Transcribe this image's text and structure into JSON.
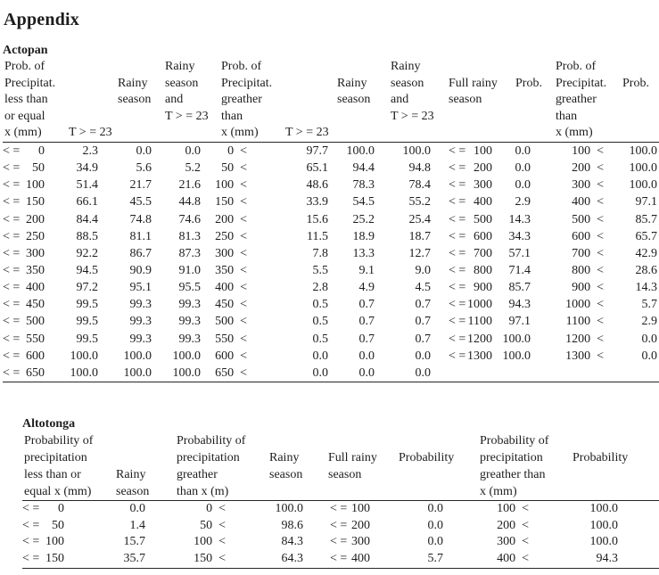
{
  "page": {
    "title": "Appendix"
  },
  "tables": [
    {
      "name": "Actopan",
      "operators": {
        "less_equal": "< =",
        "greater": "<"
      },
      "headers": [
        [
          "Prob. of",
          "Precipitat.",
          "less than",
          "or equal",
          "x (mm)"
        ],
        [
          "T > = 23"
        ],
        [
          "Rainy",
          "season"
        ],
        [
          "Rainy",
          "season",
          "and",
          "T > = 23"
        ],
        [
          "Prob. of",
          "Precipitat.",
          "greather",
          "than",
          "x (mm)"
        ],
        [
          "T > = 23"
        ],
        [
          "Rainy",
          "season"
        ],
        [
          "Rainy",
          "season",
          "and",
          "T > = 23"
        ],
        [
          "Full rainy",
          "season"
        ],
        [
          "Prob."
        ],
        [
          "Prob. of",
          "Precipitat.",
          "greather",
          "than",
          "x (mm)"
        ],
        [
          "Prob."
        ]
      ],
      "rows": [
        [
          "0",
          "2.3",
          "0.0",
          "0.0",
          "0",
          "97.7",
          "100.0",
          "100.0",
          "100",
          "0.0",
          "100",
          "100.0"
        ],
        [
          "50",
          "34.9",
          "5.6",
          "5.2",
          "50",
          "65.1",
          "94.4",
          "94.8",
          "200",
          "0.0",
          "200",
          "100.0"
        ],
        [
          "100",
          "51.4",
          "21.7",
          "21.6",
          "100",
          "48.6",
          "78.3",
          "78.4",
          "300",
          "0.0",
          "300",
          "100.0"
        ],
        [
          "150",
          "66.1",
          "45.5",
          "44.8",
          "150",
          "33.9",
          "54.5",
          "55.2",
          "400",
          "2.9",
          "400",
          "97.1"
        ],
        [
          "200",
          "84.4",
          "74.8",
          "74.6",
          "200",
          "15.6",
          "25.2",
          "25.4",
          "500",
          "14.3",
          "500",
          "85.7"
        ],
        [
          "250",
          "88.5",
          "81.1",
          "81.3",
          "250",
          "11.5",
          "18.9",
          "18.7",
          "600",
          "34.3",
          "600",
          "65.7"
        ],
        [
          "300",
          "92.2",
          "86.7",
          "87.3",
          "300",
          "7.8",
          "13.3",
          "12.7",
          "700",
          "57.1",
          "700",
          "42.9"
        ],
        [
          "350",
          "94.5",
          "90.9",
          "91.0",
          "350",
          "5.5",
          "9.1",
          "9.0",
          "800",
          "71.4",
          "800",
          "28.6"
        ],
        [
          "400",
          "97.2",
          "95.1",
          "95.5",
          "400",
          "2.8",
          "4.9",
          "4.5",
          "900",
          "85.7",
          "900",
          "14.3"
        ],
        [
          "450",
          "99.5",
          "99.3",
          "99.3",
          "450",
          "0.5",
          "0.7",
          "0.7",
          "1000",
          "94.3",
          "1000",
          "5.7"
        ],
        [
          "500",
          "99.5",
          "99.3",
          "99.3",
          "500",
          "0.5",
          "0.7",
          "0.7",
          "1100",
          "97.1",
          "1100",
          "2.9"
        ],
        [
          "550",
          "99.5",
          "99.3",
          "99.3",
          "550",
          "0.5",
          "0.7",
          "0.7",
          "1200",
          "100.0",
          "1200",
          "0.0"
        ],
        [
          "600",
          "100.0",
          "100.0",
          "100.0",
          "600",
          "0.0",
          "0.0",
          "0.0",
          "1300",
          "100.0",
          "1300",
          "0.0"
        ],
        [
          "650",
          "100.0",
          "100.0",
          "100.0",
          "650",
          "0.0",
          "0.0",
          "0.0",
          "",
          "",
          "",
          ""
        ]
      ]
    },
    {
      "name": "Altotonga",
      "operators": {
        "less_equal": "< =",
        "greater": "<"
      },
      "headers": [
        [
          "Probability of",
          "precipitation",
          "less than or",
          "equal x (mm)"
        ],
        [
          "Rainy",
          "season"
        ],
        [
          "Probability of",
          "precipitation",
          "greather",
          "than x (m)"
        ],
        [
          "Rainy",
          "season"
        ],
        [
          "Full rainy",
          "season"
        ],
        [
          "Probability"
        ],
        [
          "Probability of",
          "precipitation",
          "greather than",
          "x (mm)"
        ],
        [
          "Probability"
        ]
      ],
      "rows": [
        [
          "0",
          "0.0",
          "0",
          "100.0",
          "100",
          "0.0",
          "100",
          "100.0"
        ],
        [
          "50",
          "1.4",
          "50",
          "98.6",
          "200",
          "0.0",
          "200",
          "100.0"
        ],
        [
          "100",
          "15.7",
          "100",
          "84.3",
          "300",
          "0.0",
          "300",
          "100.0"
        ],
        [
          "150",
          "35.7",
          "150",
          "64.3",
          "400",
          "5.7",
          "400",
          "94.3"
        ]
      ]
    }
  ]
}
